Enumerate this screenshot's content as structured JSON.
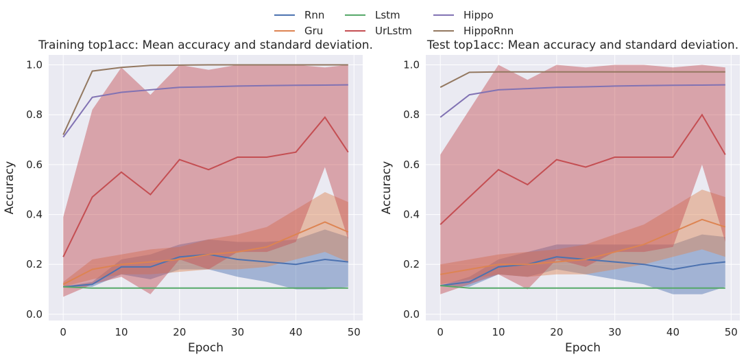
{
  "legend": {
    "placement": "top-center",
    "entries": [
      {
        "name": "Rnn",
        "color": "#4c72b0"
      },
      {
        "name": "Gru",
        "color": "#dd8452"
      },
      {
        "name": "Lstm",
        "color": "#55a868"
      },
      {
        "name": "UrLstm",
        "color": "#c44e52"
      },
      {
        "name": "Hippo",
        "color": "#8172b3"
      },
      {
        "name": "HippoRnn",
        "color": "#937860"
      }
    ]
  },
  "chart_data": [
    {
      "type": "line",
      "title": "Training top1acc: Mean accuracy and standard deviation.",
      "xlabel": "Epoch",
      "ylabel": "Accuracy",
      "xlim": [
        -2.5,
        51.5
      ],
      "ylim": [
        -0.025,
        1.04
      ],
      "xticks": [
        0,
        10,
        20,
        30,
        40,
        50
      ],
      "yticks": [
        0.0,
        0.2,
        0.4,
        0.6,
        0.8,
        1.0
      ],
      "grid": true,
      "x": [
        0,
        5,
        10,
        15,
        20,
        25,
        30,
        35,
        40,
        45,
        49
      ],
      "series": [
        {
          "name": "Rnn",
          "color": "#4c72b0",
          "values": [
            0.11,
            0.12,
            0.19,
            0.19,
            0.23,
            0.24,
            0.22,
            0.21,
            0.2,
            0.22,
            0.21
          ],
          "std": [
            0.0,
            0.01,
            0.03,
            0.05,
            0.05,
            0.06,
            0.07,
            0.08,
            0.1,
            0.12,
            0.1
          ]
        },
        {
          "name": "Gru",
          "color": "#dd8452",
          "values": [
            0.12,
            0.18,
            0.2,
            0.21,
            0.22,
            0.24,
            0.25,
            0.27,
            0.32,
            0.37,
            0.33
          ],
          "std": [
            0.01,
            0.04,
            0.04,
            0.05,
            0.05,
            0.06,
            0.07,
            0.08,
            0.1,
            0.12,
            0.12
          ]
        },
        {
          "name": "Lstm",
          "color": "#55a868",
          "values": [
            0.11,
            0.105,
            0.105,
            0.105,
            0.105,
            0.105,
            0.105,
            0.105,
            0.105,
            0.105,
            0.105
          ],
          "std": [
            0.0,
            0.0,
            0.0,
            0.0,
            0.0,
            0.0,
            0.0,
            0.0,
            0.0,
            0.0,
            0.0
          ]
        },
        {
          "name": "UrLstm",
          "color": "#c44e52",
          "values": [
            0.23,
            0.47,
            0.57,
            0.48,
            0.62,
            0.58,
            0.63,
            0.63,
            0.65,
            0.79,
            0.65
          ],
          "std": [
            0.16,
            0.35,
            0.42,
            0.4,
            0.4,
            0.4,
            0.38,
            0.38,
            0.36,
            0.2,
            0.35
          ]
        },
        {
          "name": "Hippo",
          "color": "#8172b3",
          "values": [
            0.71,
            0.87,
            0.89,
            0.9,
            0.91,
            0.912,
            0.915,
            0.917,
            0.918,
            0.919,
            0.92
          ],
          "std": [
            0.0,
            0.0,
            0.0,
            0.0,
            0.0,
            0.0,
            0.0,
            0.0,
            0.0,
            0.0,
            0.0
          ]
        },
        {
          "name": "HippoRnn",
          "color": "#937860",
          "values": [
            0.72,
            0.975,
            0.99,
            0.998,
            0.999,
            1.0,
            1.0,
            1.0,
            1.0,
            1.0,
            1.0
          ],
          "std": [
            0.0,
            0.0,
            0.0,
            0.0,
            0.0,
            0.0,
            0.0,
            0.0,
            0.0,
            0.0,
            0.0
          ]
        }
      ]
    },
    {
      "type": "line",
      "title": "Test top1acc: Mean accuracy and standard deviation.",
      "xlabel": "Epoch",
      "ylabel": "Accuracy",
      "xlim": [
        -2.5,
        51.5
      ],
      "ylim": [
        -0.025,
        1.04
      ],
      "xticks": [
        0,
        10,
        20,
        30,
        40,
        50
      ],
      "yticks": [
        0.0,
        0.2,
        0.4,
        0.6,
        0.8,
        1.0
      ],
      "grid": true,
      "x": [
        0,
        5,
        10,
        15,
        20,
        25,
        30,
        35,
        40,
        45,
        49
      ],
      "series": [
        {
          "name": "Rnn",
          "color": "#4c72b0",
          "values": [
            0.115,
            0.13,
            0.19,
            0.2,
            0.23,
            0.22,
            0.21,
            0.2,
            0.18,
            0.2,
            0.21
          ],
          "std": [
            0.0,
            0.02,
            0.03,
            0.05,
            0.05,
            0.06,
            0.07,
            0.08,
            0.1,
            0.12,
            0.1
          ]
        },
        {
          "name": "Gru",
          "color": "#dd8452",
          "values": [
            0.16,
            0.18,
            0.2,
            0.2,
            0.21,
            0.22,
            0.25,
            0.28,
            0.33,
            0.38,
            0.35
          ],
          "std": [
            0.04,
            0.04,
            0.04,
            0.05,
            0.05,
            0.06,
            0.07,
            0.08,
            0.1,
            0.12,
            0.12
          ]
        },
        {
          "name": "Lstm",
          "color": "#55a868",
          "values": [
            0.115,
            0.105,
            0.105,
            0.105,
            0.105,
            0.105,
            0.105,
            0.105,
            0.105,
            0.105,
            0.105
          ],
          "std": [
            0.0,
            0.0,
            0.0,
            0.0,
            0.0,
            0.0,
            0.0,
            0.0,
            0.0,
            0.0,
            0.0
          ]
        },
        {
          "name": "UrLstm",
          "color": "#c44e52",
          "values": [
            0.36,
            0.47,
            0.58,
            0.52,
            0.62,
            0.59,
            0.63,
            0.63,
            0.63,
            0.8,
            0.64
          ],
          "std": [
            0.28,
            0.35,
            0.42,
            0.42,
            0.4,
            0.4,
            0.38,
            0.38,
            0.36,
            0.2,
            0.35
          ]
        },
        {
          "name": "Hippo",
          "color": "#8172b3",
          "values": [
            0.79,
            0.88,
            0.9,
            0.905,
            0.91,
            0.912,
            0.915,
            0.917,
            0.918,
            0.919,
            0.92
          ],
          "std": [
            0.0,
            0.0,
            0.0,
            0.0,
            0.0,
            0.0,
            0.0,
            0.0,
            0.0,
            0.0,
            0.0
          ]
        },
        {
          "name": "HippoRnn",
          "color": "#937860",
          "values": [
            0.91,
            0.97,
            0.972,
            0.972,
            0.972,
            0.972,
            0.972,
            0.972,
            0.972,
            0.972,
            0.972
          ],
          "std": [
            0.0,
            0.0,
            0.0,
            0.0,
            0.0,
            0.0,
            0.0,
            0.0,
            0.0,
            0.0,
            0.0
          ]
        }
      ]
    }
  ]
}
